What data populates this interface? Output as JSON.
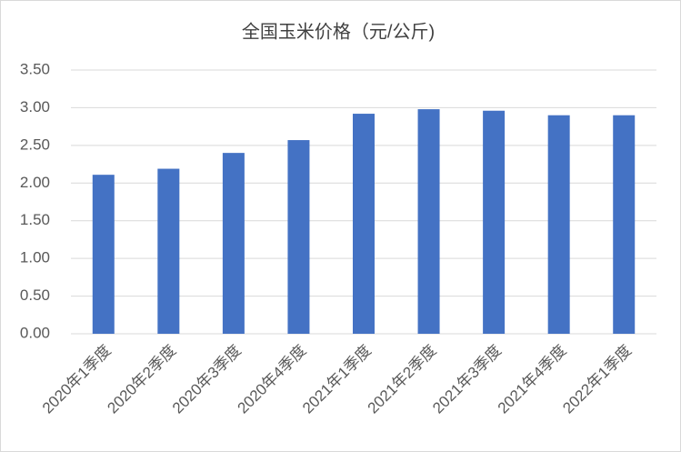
{
  "chart_data": {
    "type": "bar",
    "title": "全国玉米价格（元/公斤)",
    "categories": [
      "2020年1季度",
      "2020年2季度",
      "2020年3季度",
      "2020年4季度",
      "2021年1季度",
      "2021年2季度",
      "2021年3季度",
      "2021年4季度",
      "2022年1季度"
    ],
    "values": [
      2.11,
      2.19,
      2.4,
      2.57,
      2.92,
      2.98,
      2.96,
      2.9,
      2.9
    ],
    "color": "#4472c4",
    "ylim": [
      0,
      3.5
    ],
    "yticks": [
      {
        "value": 0,
        "label": "0.00"
      },
      {
        "value": 0.5,
        "label": "0.50"
      },
      {
        "value": 1,
        "label": "1.00"
      },
      {
        "value": 1.5,
        "label": "1.50"
      },
      {
        "value": 2,
        "label": "2.00"
      },
      {
        "value": 2.5,
        "label": "2.50"
      },
      {
        "value": 3,
        "label": "3.00"
      },
      {
        "value": 3.5,
        "label": "3.50"
      }
    ],
    "grid": true
  }
}
